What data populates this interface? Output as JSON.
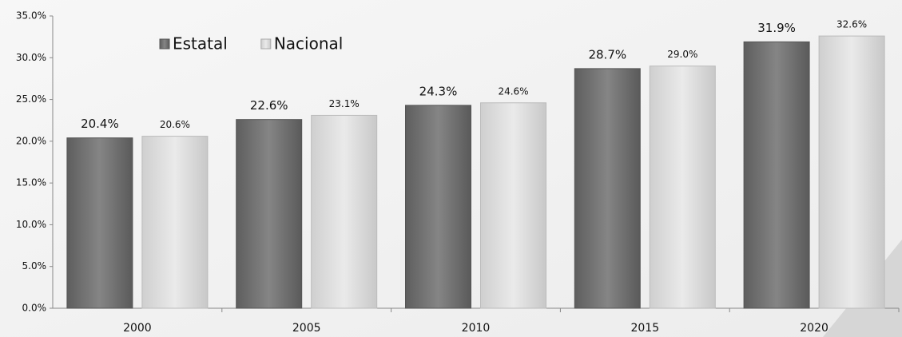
{
  "chart_data": {
    "type": "bar",
    "categories": [
      "2000",
      "2005",
      "2010",
      "2015",
      "2020"
    ],
    "series": [
      {
        "name": "Estatal",
        "color": "#7a7a7a",
        "values": [
          20.4,
          22.6,
          24.3,
          28.7,
          31.9
        ],
        "value_labels": [
          "20.4%",
          "22.6%",
          "24.3%",
          "28.7%",
          "31.9%"
        ]
      },
      {
        "name": "Nacional",
        "color": "#dcdcdc",
        "values": [
          20.6,
          23.1,
          24.6,
          29.0,
          32.6
        ],
        "value_labels": [
          "20.6%",
          "23.1%",
          "24.6%",
          "29.0%",
          "32.6%"
        ]
      }
    ],
    "ylim": [
      0,
      35
    ],
    "yticks": [
      {
        "value": 0,
        "label": "0.0%"
      },
      {
        "value": 5,
        "label": "5.0%"
      },
      {
        "value": 10,
        "label": "10.0%"
      },
      {
        "value": 15,
        "label": "15.0%"
      },
      {
        "value": 20,
        "label": "20.0%"
      },
      {
        "value": 25,
        "label": "25.0%"
      },
      {
        "value": 30,
        "label": "30.0%"
      },
      {
        "value": 35,
        "label": "35.0%"
      }
    ],
    "legend": "top-left"
  }
}
